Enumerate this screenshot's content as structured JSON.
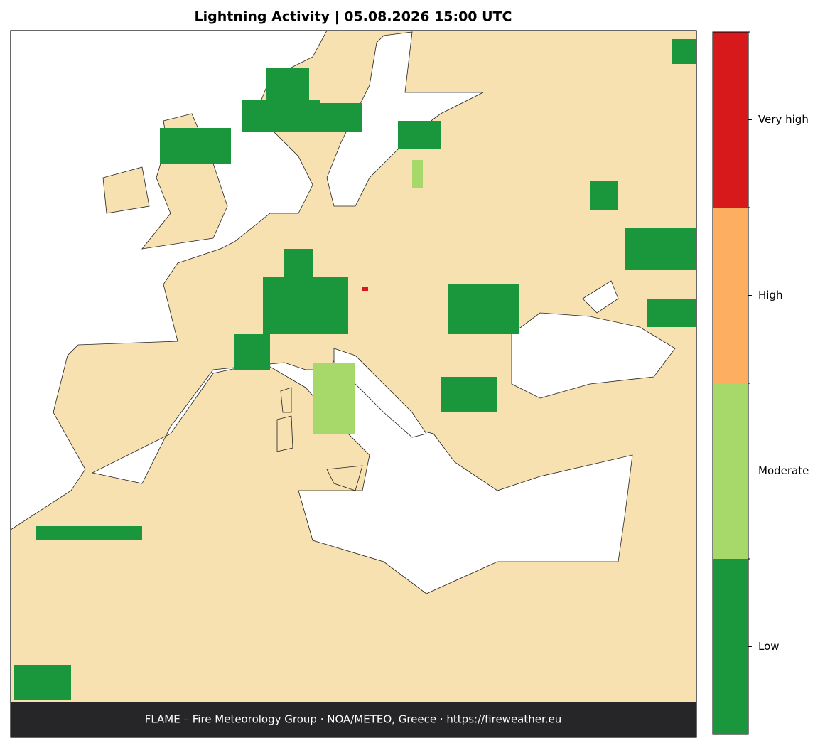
{
  "title": "Lightning Activity  |  05.08.2026 15:00 UTC",
  "footer": "FLAME – Fire Meteorology Group · NOA/METEO, Greece · https://fireweather.eu",
  "legend": [
    {
      "label": "Low",
      "color": "#1a963d"
    },
    {
      "label": "Moderate",
      "color": "#a6d96a"
    },
    {
      "label": "High",
      "color": "#fdae61"
    },
    {
      "label": "Very high",
      "color": "#d7191c"
    }
  ]
}
